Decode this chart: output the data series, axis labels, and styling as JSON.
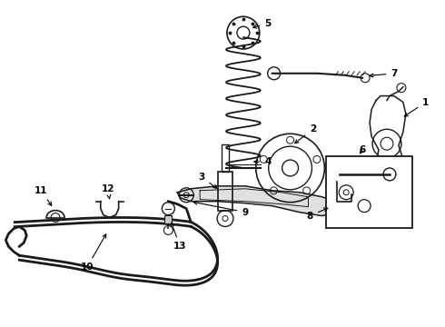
{
  "background_color": "#ffffff",
  "line_color": "#1a1a1a",
  "fig_width": 4.9,
  "fig_height": 3.6,
  "dpi": 100,
  "xlim": [
    0,
    490
  ],
  "ylim": [
    0,
    360
  ]
}
